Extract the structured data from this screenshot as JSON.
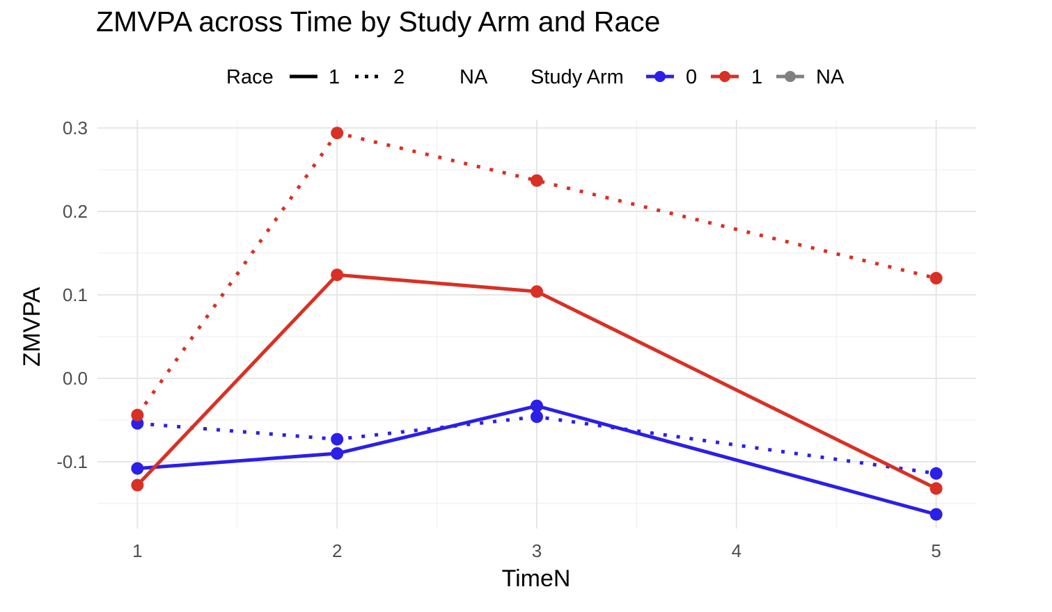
{
  "chart_data": {
    "type": "line",
    "title": "ZMVPA across Time by Study Arm and Race",
    "xlabel": "TimeN",
    "ylabel": "ZMVPA",
    "x_ticks": [
      "1",
      "2",
      "3",
      "4",
      "5"
    ],
    "y_ticks": [
      "-0.1",
      "0.0",
      "0.1",
      "0.2",
      "0.3"
    ],
    "xlim": [
      0.8,
      5.2
    ],
    "ylim": [
      -0.18,
      0.31
    ],
    "grid": true,
    "legend_position": "top",
    "legend": {
      "race_title": "Race",
      "race_entries": [
        {
          "label": "1",
          "linetype": "solid"
        },
        {
          "label": "2",
          "linetype": "dotted"
        },
        {
          "label": "NA",
          "linetype": "blank"
        }
      ],
      "arm_title": "Study Arm",
      "arm_entries": [
        {
          "label": "0",
          "color": "#2b1fe8"
        },
        {
          "label": "1",
          "color": "#d93025"
        },
        {
          "label": "NA",
          "color": "#808080"
        }
      ]
    },
    "series": [
      {
        "arm": "0",
        "race": "1",
        "color": "#2b1fe8",
        "linetype": "solid",
        "points": [
          [
            1,
            -0.108
          ],
          [
            2,
            -0.09
          ],
          [
            3,
            -0.033
          ],
          [
            5,
            -0.163
          ]
        ]
      },
      {
        "arm": "0",
        "race": "2",
        "color": "#2b1fe8",
        "linetype": "dotted",
        "points": [
          [
            1,
            -0.054
          ],
          [
            2,
            -0.073
          ],
          [
            3,
            -0.046
          ],
          [
            5,
            -0.114
          ]
        ]
      },
      {
        "arm": "1",
        "race": "1",
        "color": "#d93025",
        "linetype": "solid",
        "points": [
          [
            1,
            -0.128
          ],
          [
            2,
            0.124
          ],
          [
            3,
            0.104
          ],
          [
            5,
            -0.132
          ]
        ]
      },
      {
        "arm": "1",
        "race": "2",
        "color": "#d93025",
        "linetype": "dotted",
        "points": [
          [
            1,
            -0.044
          ],
          [
            2,
            0.294
          ],
          [
            3,
            0.237
          ],
          [
            5,
            0.12
          ]
        ]
      }
    ]
  }
}
